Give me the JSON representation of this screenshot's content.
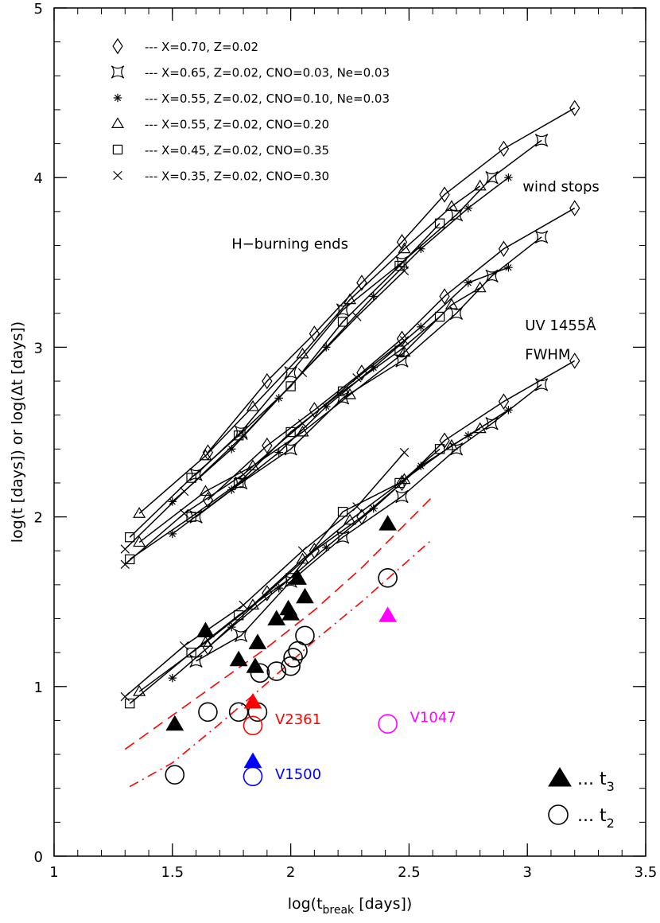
{
  "chart_data": {
    "type": "scatter",
    "xlabel": "log(t",
    "xlabel_sub": "break",
    "xlabel_tail": " [days])",
    "ylabel": "log(t [days]) or log(Δt [days])",
    "xlim": [
      1,
      3.5
    ],
    "ylim": [
      0,
      5
    ],
    "x_ticks": [
      1,
      1.5,
      2,
      2.5,
      3,
      3.5
    ],
    "x_tick_labels": [
      "1",
      "1.5",
      "2",
      "2.5",
      "3",
      "3.5"
    ],
    "y_ticks": [
      0,
      1,
      2,
      3,
      4,
      5
    ],
    "y_tick_labels": [
      "0",
      "1",
      "2",
      "3",
      "4",
      "5"
    ],
    "grid": false,
    "legend": [
      {
        "marker": "diamond",
        "label": "--- X=0.70, Z=0.02"
      },
      {
        "marker": "astroid",
        "label": "--- X=0.65, Z=0.02, CNO=0.03, Ne=0.03"
      },
      {
        "marker": "star",
        "label": "--- X=0.55, Z=0.02, CNO=0.10, Ne=0.03"
      },
      {
        "marker": "triangle",
        "label": "--- X=0.55, Z=0.02, CNO=0.20"
      },
      {
        "marker": "square",
        "label": "--- X=0.45, Z=0.02, CNO=0.35"
      },
      {
        "marker": "cross",
        "label": "--- X=0.35, Z=0.02, CNO=0.30"
      }
    ],
    "annotations": [
      {
        "text": "H−burning ends",
        "x": 1.75,
        "y": 3.58
      },
      {
        "text": "wind stops",
        "x": 2.98,
        "y": 3.92
      },
      {
        "text": "UV 1455Å",
        "x": 2.99,
        "y": 3.1
      },
      {
        "text": "FWHM",
        "x": 2.99,
        "y": 2.93
      }
    ],
    "groups": [
      {
        "name": "H-burning ends",
        "models": [
          {
            "marker": "diamond",
            "x": [
              1.65,
              1.9,
              2.1,
              2.3,
              2.47,
              2.65,
              2.9,
              3.2
            ],
            "y": [
              2.38,
              2.8,
              3.08,
              3.38,
              3.62,
              3.9,
              4.17,
              4.41
            ]
          },
          {
            "marker": "astroid",
            "x": [
              1.6,
              1.79,
              2.0,
              2.22,
              2.47,
              2.7,
              2.85,
              3.06
            ],
            "y": [
              2.25,
              2.5,
              2.85,
              3.22,
              3.5,
              3.78,
              4.0,
              4.22
            ]
          },
          {
            "marker": "star",
            "x": [
              1.5,
              1.75,
              1.95,
              2.15,
              2.35,
              2.55,
              2.75,
              2.92
            ],
            "y": [
              2.09,
              2.4,
              2.7,
              3.0,
              3.3,
              3.58,
              3.82,
              4.0
            ]
          },
          {
            "marker": "triangle",
            "x": [
              1.36,
              1.64,
              1.84,
              2.05,
              2.25,
              2.48,
              2.68,
              2.8
            ],
            "y": [
              2.02,
              2.36,
              2.65,
              2.96,
              3.28,
              3.58,
              3.83,
              3.95
            ]
          },
          {
            "marker": "square",
            "x": [
              1.32,
              1.58,
              1.78,
              2.0,
              2.22,
              2.46,
              2.63
            ],
            "y": [
              1.88,
              2.23,
              2.48,
              2.77,
              3.15,
              3.48,
              3.73
            ]
          },
          {
            "marker": "cross",
            "x": [
              1.3,
              1.55,
              1.8,
              2.05,
              2.28,
              2.48
            ],
            "y": [
              1.81,
              2.15,
              2.48,
              2.85,
              3.18,
              3.45
            ]
          }
        ]
      },
      {
        "name": "wind stops",
        "models": [
          {
            "marker": "diamond",
            "x": [
              1.65,
              1.9,
              2.1,
              2.3,
              2.47,
              2.65,
              2.9,
              3.2
            ],
            "y": [
              2.1,
              2.42,
              2.63,
              2.85,
              3.05,
              3.3,
              3.58,
              3.82
            ]
          },
          {
            "marker": "astroid",
            "x": [
              1.6,
              1.79,
              2.0,
              2.22,
              2.47,
              2.7,
              2.85,
              3.06
            ],
            "y": [
              2.0,
              2.2,
              2.4,
              2.7,
              2.92,
              3.2,
              3.42,
              3.65
            ]
          },
          {
            "marker": "star",
            "x": [
              1.5,
              1.75,
              1.95,
              2.15,
              2.35,
              2.55,
              2.75,
              2.92
            ],
            "y": [
              1.9,
              2.16,
              2.38,
              2.65,
              2.88,
              3.12,
              3.38,
              3.47
            ]
          },
          {
            "marker": "triangle",
            "x": [
              1.36,
              1.64,
              1.84,
              2.05,
              2.25,
              2.48,
              2.68,
              2.8
            ],
            "y": [
              1.85,
              2.15,
              2.3,
              2.5,
              2.72,
              2.97,
              3.25,
              3.35
            ]
          },
          {
            "marker": "square",
            "x": [
              1.32,
              1.58,
              1.78,
              2.0,
              2.22,
              2.46,
              2.63
            ],
            "y": [
              1.75,
              2.0,
              2.2,
              2.5,
              2.74,
              2.98,
              3.18
            ]
          },
          {
            "marker": "cross",
            "x": [
              1.3,
              1.55,
              1.8,
              2.05,
              2.28,
              2.48
            ],
            "y": [
              1.72,
              2.02,
              2.25,
              2.55,
              2.82,
              3.04
            ]
          }
        ]
      },
      {
        "name": "UV 1455A FWHM",
        "models": [
          {
            "marker": "diamond",
            "x": [
              1.65,
              1.9,
              2.1,
              2.3,
              2.47,
              2.65,
              2.9,
              3.2
            ],
            "y": [
              1.23,
              1.55,
              1.8,
              2.0,
              2.2,
              2.45,
              2.68,
              2.92
            ]
          },
          {
            "marker": "astroid",
            "x": [
              1.6,
              1.79,
              2.0,
              2.22,
              2.47,
              2.7,
              2.85,
              3.06
            ],
            "y": [
              1.15,
              1.3,
              1.62,
              1.88,
              2.12,
              2.4,
              2.55,
              2.78
            ]
          },
          {
            "marker": "star",
            "x": [
              1.5,
              1.75,
              1.95,
              2.15,
              2.35,
              2.55,
              2.75,
              2.92
            ],
            "y": [
              1.05,
              1.35,
              1.58,
              1.82,
              2.05,
              2.3,
              2.48,
              2.63
            ]
          },
          {
            "marker": "triangle",
            "x": [
              1.36,
              1.64,
              1.84,
              2.05,
              2.25,
              2.48,
              2.68,
              2.8
            ],
            "y": [
              0.97,
              1.26,
              1.48,
              1.75,
              1.98,
              2.22,
              2.42,
              2.52
            ]
          },
          {
            "marker": "square",
            "x": [
              1.32,
              1.58,
              1.78,
              2.0,
              2.22,
              2.46,
              2.63
            ],
            "y": [
              0.9,
              1.2,
              1.42,
              1.64,
              2.03,
              2.2,
              2.4
            ]
          },
          {
            "marker": "cross",
            "x": [
              1.3,
              1.55,
              1.8,
              2.05,
              2.28,
              2.48
            ],
            "y": [
              0.94,
              1.24,
              1.48,
              1.8,
              2.06,
              2.38
            ]
          }
        ]
      }
    ],
    "dashed_line": {
      "x": [
        1.3,
        1.5,
        1.7,
        1.9,
        2.1,
        2.3,
        2.6
      ],
      "y": [
        0.63,
        0.83,
        1.03,
        1.23,
        1.45,
        1.7,
        2.12
      ]
    },
    "dashdot_line": {
      "x": [
        1.32,
        1.5,
        1.7,
        1.9,
        2.1,
        2.3,
        2.6
      ],
      "y": [
        0.41,
        0.55,
        0.78,
        1.02,
        1.27,
        1.5,
        1.87
      ]
    },
    "t3_points": {
      "x": [
        1.51,
        1.64,
        1.78,
        1.86,
        1.85,
        1.94,
        1.99,
        2.0,
        2.03,
        2.06,
        2.41
      ],
      "y": [
        0.78,
        1.33,
        1.16,
        1.26,
        1.12,
        1.4,
        1.46,
        1.43,
        1.64,
        1.53,
        1.96
      ]
    },
    "t2_points": {
      "x": [
        1.51,
        1.65,
        1.78,
        1.86,
        1.87,
        1.94,
        2.0,
        2.01,
        2.03,
        2.06,
        2.41
      ],
      "y": [
        0.48,
        0.85,
        0.85,
        0.85,
        1.08,
        1.09,
        1.12,
        1.17,
        1.21,
        1.3,
        1.64
      ]
    },
    "novae": [
      {
        "name": "V2361",
        "color": "#ff0000",
        "x": 1.84,
        "t3": 0.91,
        "t2": 0.77
      },
      {
        "name": "V1500",
        "color": "#0000ff",
        "x": 1.84,
        "t3": 0.56,
        "t2": 0.47
      },
      {
        "name": "V1047",
        "color": "#ff00ff",
        "x": 2.41,
        "t3": 1.42,
        "t2": 0.78
      }
    ],
    "key": [
      {
        "marker": "filled-triangle",
        "label": "... t",
        "sub": "3"
      },
      {
        "marker": "open-circle",
        "label": "... t",
        "sub": "2"
      }
    ]
  }
}
